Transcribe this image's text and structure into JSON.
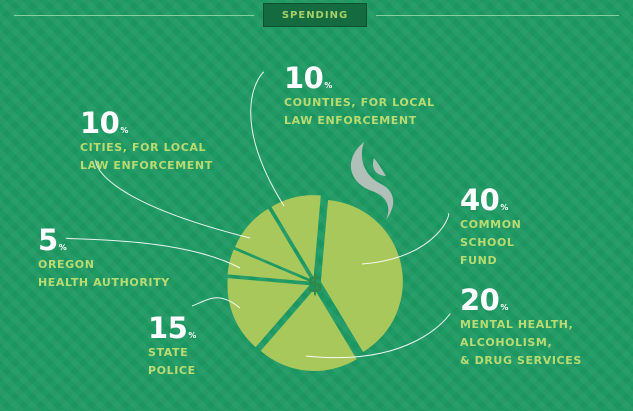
{
  "header": {
    "title": "SPENDING"
  },
  "colors": {
    "background": "#1e9a63",
    "slice": "#a8c85c",
    "label_text": "#b8dc72",
    "badge_bg": "#136b3f",
    "dollar": "#2f8a4a"
  },
  "icons": {
    "center": "dollar-sign",
    "smoke": "smoke-wisp-icon"
  },
  "chart_data": {
    "type": "pie",
    "title": "SPENDING",
    "unit": "%",
    "center_symbol": "$",
    "slices": [
      {
        "label": "COMMON SCHOOL FUND",
        "lines": [
          "COMMON",
          "SCHOOL",
          "FUND"
        ],
        "value": 40
      },
      {
        "label": "MENTAL HEALTH, ALCOHOLISM, & DRUG SERVICES",
        "lines": [
          "MENTAL HEALTH,",
          "ALCOHOLISM,",
          "& DRUG SERVICES"
        ],
        "value": 20
      },
      {
        "label": "STATE POLICE",
        "lines": [
          "STATE",
          "POLICE"
        ],
        "value": 15
      },
      {
        "label": "OREGON HEALTH AUTHORITY",
        "lines": [
          "OREGON",
          "HEALTH AUTHORITY"
        ],
        "value": 5
      },
      {
        "label": "CITIES, FOR LOCAL LAW ENFORCEMENT",
        "lines": [
          "CITIES, FOR LOCAL",
          "LAW ENFORCEMENT"
        ],
        "value": 10
      },
      {
        "label": "COUNTIES, FOR LOCAL LAW ENFORCEMENT",
        "lines": [
          "COUNTIES, FOR LOCAL",
          "LAW ENFORCEMENT"
        ],
        "value": 10
      }
    ]
  }
}
